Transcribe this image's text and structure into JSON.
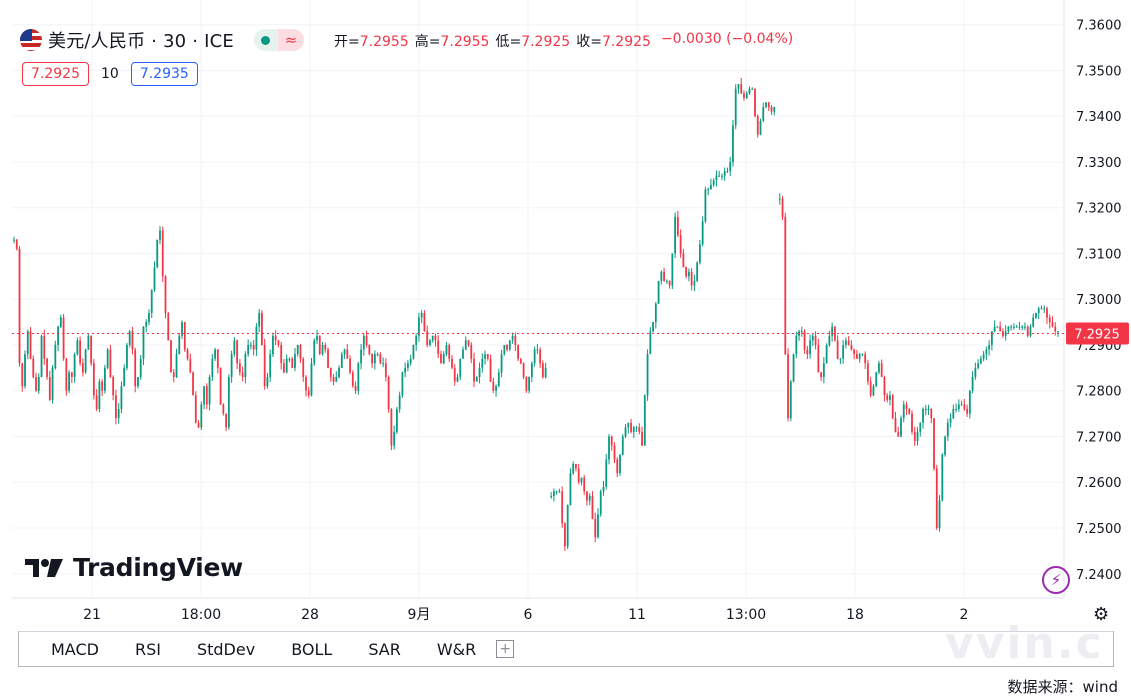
{
  "header": {
    "title": "美元/人民币 · 30 · ICE",
    "ohlc": [
      {
        "label": "开=",
        "value": "7.2955"
      },
      {
        "label": "高=",
        "value": "7.2955"
      },
      {
        "label": "低=",
        "value": "7.2925"
      },
      {
        "label": "收=",
        "value": "7.2925"
      }
    ],
    "change": "−0.0030 (−0.04%)",
    "sell_price": "7.2925",
    "spread": "10",
    "buy_price": "7.2935"
  },
  "logo_text": "TradingView",
  "watermark": "vvin.c",
  "indicator_tabs": [
    "MACD",
    "RSI",
    "StdDev",
    "BOLL",
    "SAR",
    "W&R"
  ],
  "source_note": "数据来源：wind",
  "colors": {
    "up": "#089981",
    "down": "#f23645",
    "current": "#f23645",
    "grid": "#f0f3fa"
  },
  "chart_data": {
    "type": "candlestick",
    "y_ticks": [
      "7.3600",
      "7.3500",
      "7.3400",
      "7.3300",
      "7.3200",
      "7.3100",
      "7.3000",
      "7.2900",
      "7.2800",
      "7.2700",
      "7.2600",
      "7.2500",
      "7.2400"
    ],
    "ylim": [
      7.2347,
      7.3654
    ],
    "x_ticks": [
      "21",
      "18:00",
      "28",
      "9月",
      "6",
      "11",
      "13:00",
      "18",
      "2"
    ],
    "current_price": 7.2925,
    "current_label": "7.2925",
    "grid": true,
    "close_path": [
      7.313,
      7.311,
      7.286,
      7.281,
      7.288,
      7.293,
      7.287,
      7.283,
      7.28,
      7.283,
      7.292,
      7.287,
      7.283,
      7.278,
      7.285,
      7.29,
      7.294,
      7.296,
      7.287,
      7.28,
      7.284,
      7.283,
      7.288,
      7.291,
      7.286,
      7.284,
      7.289,
      7.292,
      7.286,
      7.279,
      7.276,
      7.282,
      7.28,
      7.285,
      7.289,
      7.283,
      7.279,
      7.274,
      7.276,
      7.281,
      7.285,
      7.29,
      7.293,
      7.289,
      7.281,
      7.283,
      7.287,
      7.294,
      7.295,
      7.297,
      7.302,
      7.307,
      7.313,
      7.315,
      7.305,
      7.297,
      7.291,
      7.284,
      7.283,
      7.288,
      7.292,
      7.295,
      7.289,
      7.287,
      7.284,
      7.279,
      7.273,
      7.272,
      7.277,
      7.281,
      7.277,
      7.283,
      7.287,
      7.289,
      7.285,
      7.277,
      7.275,
      7.272,
      7.283,
      7.288,
      7.291,
      7.286,
      7.284,
      7.283,
      7.288,
      7.29,
      7.29,
      7.289,
      7.294,
      7.297,
      7.29,
      7.281,
      7.283,
      7.288,
      7.292,
      7.291,
      7.29,
      7.286,
      7.284,
      7.287,
      7.287,
      7.285,
      7.288,
      7.29,
      7.287,
      7.283,
      7.28,
      7.279,
      7.286,
      7.291,
      7.292,
      7.288,
      7.29,
      7.289,
      7.285,
      7.283,
      7.282,
      7.283,
      7.285,
      7.288,
      7.289,
      7.287,
      7.284,
      7.281,
      7.28,
      7.286,
      7.289,
      7.292,
      7.29,
      7.288,
      7.286,
      7.288,
      7.288,
      7.286,
      7.286,
      7.283,
      7.276,
      7.268,
      7.271,
      7.276,
      7.279,
      7.284,
      7.285,
      7.286,
      7.287,
      7.29,
      7.292,
      7.296,
      7.297,
      7.293,
      7.29,
      7.291,
      7.292,
      7.291,
      7.288,
      7.286,
      7.288,
      7.29,
      7.287,
      7.285,
      7.282,
      7.283,
      7.287,
      7.289,
      7.291,
      7.29,
      7.287,
      7.282,
      7.283,
      7.285,
      7.287,
      7.288,
      7.287,
      7.282,
      7.28,
      7.281,
      7.284,
      7.288,
      7.29,
      7.289,
      7.291,
      7.292,
      7.29,
      7.287,
      7.286,
      7.283,
      7.28,
      7.283,
      7.286,
      7.289,
      7.289,
      7.286,
      7.283,
      7.285,
      null,
      7.257,
      7.258,
      7.258,
      7.258,
      7.251,
      7.246,
      7.255,
      7.262,
      7.264,
      7.263,
      7.26,
      7.261,
      7.258,
      7.256,
      7.257,
      7.252,
      7.248,
      7.253,
      7.258,
      7.259,
      7.265,
      7.27,
      7.268,
      7.265,
      7.262,
      7.266,
      7.27,
      7.272,
      7.273,
      7.271,
      7.272,
      7.272,
      7.271,
      7.268,
      7.279,
      7.288,
      7.293,
      7.295,
      7.299,
      7.304,
      7.306,
      7.304,
      7.304,
      7.303,
      7.31,
      7.318,
      7.314,
      7.31,
      7.307,
      7.305,
      7.306,
      7.303,
      7.304,
      7.308,
      7.312,
      7.317,
      7.324,
      7.324,
      7.325,
      7.326,
      7.327,
      7.327,
      7.327,
      7.328,
      7.328,
      7.33,
      7.338,
      7.346,
      7.347,
      7.345,
      7.344,
      7.345,
      7.346,
      7.346,
      7.34,
      7.336,
      7.339,
      7.342,
      7.343,
      7.342,
      7.341,
      7.342,
      null,
      7.322,
      7.318,
      7.288,
      7.274,
      7.282,
      7.288,
      7.292,
      7.293,
      7.293,
      7.289,
      7.288,
      7.291,
      7.292,
      7.29,
      7.284,
      7.283,
      7.286,
      7.29,
      7.292,
      7.294,
      7.291,
      7.287,
      7.287,
      7.29,
      7.291,
      7.29,
      7.289,
      7.288,
      7.287,
      7.288,
      7.288,
      7.286,
      7.282,
      7.279,
      7.281,
      7.284,
      7.286,
      7.283,
      7.279,
      7.278,
      7.279,
      7.274,
      7.271,
      7.27,
      7.274,
      7.277,
      7.276,
      7.275,
      7.271,
      7.269,
      7.271,
      7.273,
      7.276,
      7.276,
      7.276,
      7.274,
      7.263,
      7.25,
      7.256,
      7.266,
      7.27,
      7.273,
      7.274,
      7.276,
      7.276,
      7.277,
      7.277,
      7.276,
      7.275,
      7.28,
      7.283,
      7.285,
      7.286,
      7.287,
      7.288,
      7.289,
      7.29,
      7.293,
      7.294,
      7.294,
      7.293,
      7.292,
      7.293,
      7.294,
      7.294,
      7.294,
      7.294,
      7.294,
      7.294,
      7.294,
      7.292,
      7.294,
      7.296,
      7.297,
      7.298,
      7.298,
      7.298,
      7.296,
      7.295,
      7.294,
      7.293,
      7.293
    ]
  }
}
